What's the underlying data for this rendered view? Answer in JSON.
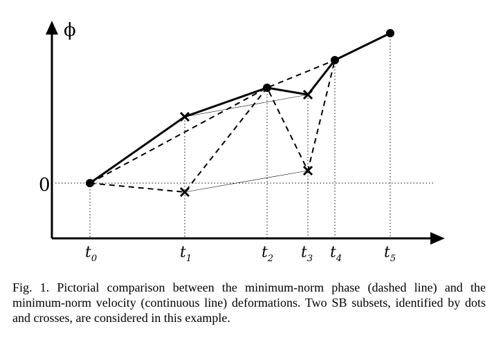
{
  "figure": {
    "y_axis_label": "ϕ",
    "zero_label": "0",
    "time_labels": [
      {
        "main": "t",
        "sub": "0"
      },
      {
        "main": "t",
        "sub": "1"
      },
      {
        "main": "t",
        "sub": "2"
      },
      {
        "main": "t",
        "sub": "3"
      },
      {
        "main": "t",
        "sub": "4"
      },
      {
        "main": "t",
        "sub": "5"
      }
    ]
  },
  "chart_data": {
    "type": "line",
    "x": [
      "t0",
      "t1",
      "t2",
      "t3",
      "t4",
      "t5"
    ],
    "series": [
      {
        "style": "continuous",
        "markers": "dots",
        "points": [
          [
            "t0",
            0
          ],
          [
            "t2",
            1.4
          ],
          [
            "t4",
            1.8
          ],
          [
            "t5",
            2.2
          ]
        ]
      },
      {
        "style": "continuous",
        "markers": "crosses",
        "points": [
          [
            "t1",
            1.0
          ],
          [
            "t3",
            1.3
          ]
        ]
      },
      {
        "style": "dashed",
        "markers": "dots",
        "points": [
          [
            "t0",
            0
          ],
          [
            "t2",
            1.4
          ],
          [
            "t4",
            1.8
          ]
        ]
      },
      {
        "style": "dashed",
        "markers": "crosses",
        "points": [
          [
            "t1",
            -0.1
          ],
          [
            "t3",
            0.2
          ]
        ]
      }
    ],
    "thin_links": [
      [
        [
          "t1",
          1.0
        ],
        [
          "t3",
          1.3
        ]
      ],
      [
        [
          "t1",
          -0.1
        ],
        [
          "t3",
          0.2
        ]
      ]
    ],
    "zero_line": "dotted",
    "grid": false
  },
  "caption": "Fig. 1.  Pictorial comparison between the minimum-norm phase (dashed line) and the minimum-norm velocity (continuous line) deformations. Two SB subsets, identified by dots and crosses, are considered in this example."
}
